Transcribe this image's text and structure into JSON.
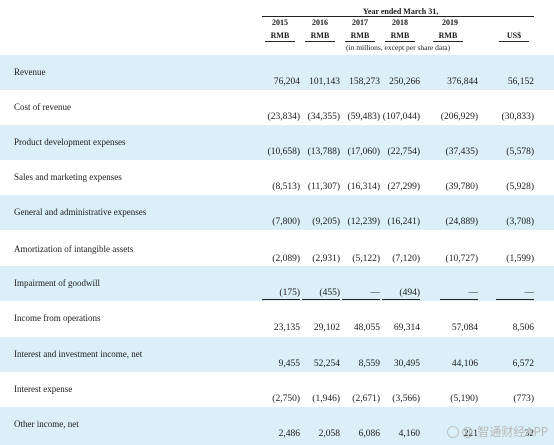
{
  "header": {
    "period": "Year ended March 31,",
    "years": [
      "2015",
      "2016",
      "2017",
      "2018",
      "2019"
    ],
    "currencies": [
      "RMB",
      "RMB",
      "RMB",
      "RMB",
      "RMB",
      "US$"
    ],
    "units": "(in millions, except per share data)"
  },
  "rows": [
    {
      "label": "Revenue",
      "values": [
        "76,204",
        "101,143",
        "158,273",
        "250,266",
        "376,844",
        "56,152"
      ]
    },
    {
      "label": "Cost of revenue",
      "values": [
        "(23,834)",
        "(34,355)",
        "(59,483)",
        "(107,044)",
        "(206,929)",
        "(30,833)"
      ]
    },
    {
      "label": "Product development expenses",
      "values": [
        "(10,658)",
        "(13,788)",
        "(17,060)",
        "(22,754)",
        "(37,435)",
        "(5,578)"
      ]
    },
    {
      "label": "Sales and marketing expenses",
      "values": [
        "(8,513)",
        "(11,307)",
        "(16,314)",
        "(27,299)",
        "(39,780)",
        "(5,928)"
      ]
    },
    {
      "label": "General and administrative expenses",
      "values": [
        "(7,800)",
        "(9,205)",
        "(12,239)",
        "(16,241)",
        "(24,889)",
        "(3,708)"
      ]
    },
    {
      "label": "Amortization of intangible assets",
      "values": [
        "(2,089)",
        "(2,931)",
        "(5,122)",
        "(7,120)",
        "(10,727)",
        "(1,599)"
      ]
    },
    {
      "label": "Impairment of goodwill",
      "values": [
        "(175)",
        "(455)",
        "—",
        "(494)",
        "—",
        "—"
      ]
    },
    {
      "label": "Income from operations",
      "values": [
        "23,135",
        "29,102",
        "48,055",
        "69,314",
        "57,084",
        "8,506"
      ]
    },
    {
      "label": "Interest and investment income, net",
      "values": [
        "9,455",
        "52,254",
        "8,559",
        "30,495",
        "44,106",
        "6,572"
      ]
    },
    {
      "label": "Interest expense",
      "values": [
        "(2,750)",
        "(1,946)",
        "(2,671)",
        "(3,566)",
        "(5,190)",
        "(773)"
      ]
    },
    {
      "label": "Other income, net",
      "values": [
        "2,486",
        "2,058",
        "6,086",
        "4,160",
        "221",
        "32"
      ]
    }
  ],
  "watermark": "@ 智通财经APP"
}
